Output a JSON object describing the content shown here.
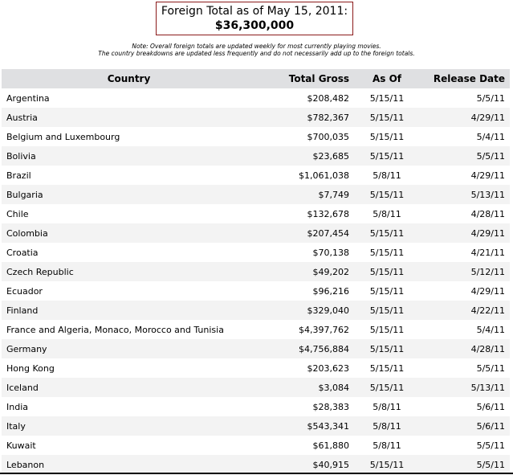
{
  "summary": {
    "label": "Foreign Total as of May 15, 2011:",
    "amount": "$36,300,000"
  },
  "note": {
    "line1": "Note: Overall foreign totals are updated weekly for most currently playing movies.",
    "line2": "The country breakdowns are updated less frequently and do not necessarily add up to the foreign totals."
  },
  "table": {
    "headers": {
      "country": "Country",
      "gross": "Total Gross",
      "asof": "As Of",
      "release": "Release Date"
    },
    "rows": [
      {
        "country": "Argentina",
        "gross": "$208,482",
        "asof": "5/15/11",
        "release": "5/5/11"
      },
      {
        "country": "Austria",
        "gross": "$782,367",
        "asof": "5/15/11",
        "release": "4/29/11"
      },
      {
        "country": "Belgium and Luxembourg",
        "gross": "$700,035",
        "asof": "5/15/11",
        "release": "5/4/11"
      },
      {
        "country": "Bolivia",
        "gross": "$23,685",
        "asof": "5/15/11",
        "release": "5/5/11"
      },
      {
        "country": "Brazil",
        "gross": "$1,061,038",
        "asof": "5/8/11",
        "release": "4/29/11"
      },
      {
        "country": "Bulgaria",
        "gross": "$7,749",
        "asof": "5/15/11",
        "release": "5/13/11"
      },
      {
        "country": "Chile",
        "gross": "$132,678",
        "asof": "5/8/11",
        "release": "4/28/11"
      },
      {
        "country": "Colombia",
        "gross": "$207,454",
        "asof": "5/15/11",
        "release": "4/29/11"
      },
      {
        "country": "Croatia",
        "gross": "$70,138",
        "asof": "5/15/11",
        "release": "4/21/11"
      },
      {
        "country": "Czech Republic",
        "gross": "$49,202",
        "asof": "5/15/11",
        "release": "5/12/11"
      },
      {
        "country": "Ecuador",
        "gross": "$96,216",
        "asof": "5/15/11",
        "release": "4/29/11"
      },
      {
        "country": "Finland",
        "gross": "$329,040",
        "asof": "5/15/11",
        "release": "4/22/11"
      },
      {
        "country": "France and Algeria, Monaco, Morocco and Tunisia",
        "gross": "$4,397,762",
        "asof": "5/15/11",
        "release": "5/4/11"
      },
      {
        "country": "Germany",
        "gross": "$4,756,884",
        "asof": "5/15/11",
        "release": "4/28/11"
      },
      {
        "country": "Hong Kong",
        "gross": "$203,623",
        "asof": "5/15/11",
        "release": "5/5/11"
      },
      {
        "country": "Iceland",
        "gross": "$3,084",
        "asof": "5/15/11",
        "release": "5/13/11"
      },
      {
        "country": "India",
        "gross": "$28,383",
        "asof": "5/8/11",
        "release": "5/6/11"
      },
      {
        "country": "Italy",
        "gross": "$543,341",
        "asof": "5/8/11",
        "release": "5/6/11"
      },
      {
        "country": "Kuwait",
        "gross": "$61,880",
        "asof": "5/8/11",
        "release": "5/5/11"
      },
      {
        "country": "Lebanon",
        "gross": "$40,915",
        "asof": "5/15/11",
        "release": "5/5/11"
      }
    ]
  }
}
